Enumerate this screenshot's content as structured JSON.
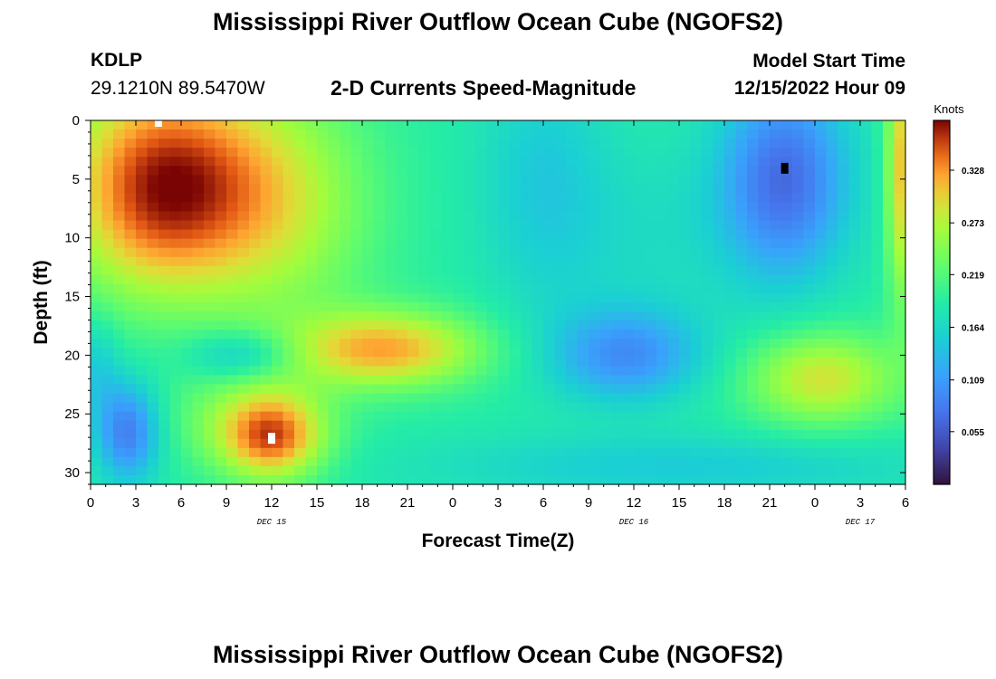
{
  "header": {
    "title": "Mississippi River Outflow Ocean Cube (NGOFS2)",
    "station_id": "KDLP",
    "station_coords": "29.1210N  89.5470W",
    "subtitle": "2-D Currents Speed-Magnitude",
    "model_start_label": "Model Start Time",
    "model_start_value": "12/15/2022 Hour 09"
  },
  "footer": {
    "title": "Mississippi River Outflow Ocean Cube (NGOFS2)"
  },
  "chart_data": {
    "type": "heatmap",
    "title": "2-D Currents Speed-Magnitude",
    "xlabel": "Forecast Time(Z)",
    "ylabel": "Depth (ft)",
    "x_tick_labels": [
      "0",
      "3",
      "6",
      "9",
      "12",
      "15",
      "18",
      "21",
      "0",
      "3",
      "6",
      "9",
      "12",
      "15",
      "18",
      "21",
      "0",
      "3",
      "6"
    ],
    "x_hours": [
      0,
      3,
      6,
      9,
      12,
      15,
      18,
      21,
      24,
      27,
      30,
      33,
      36,
      39,
      42,
      45,
      48,
      51,
      54
    ],
    "day_labels": [
      {
        "label": "DEC 15",
        "hour": 12
      },
      {
        "label": "DEC 16",
        "hour": 36
      },
      {
        "label": "DEC 17",
        "hour": 51
      }
    ],
    "y_ticks": [
      0,
      5,
      10,
      15,
      20,
      25,
      30
    ],
    "xlim_hours": [
      0,
      54
    ],
    "ylim_ft": [
      0,
      31
    ],
    "y_inverted": true,
    "colorbar": {
      "label": "Knots",
      "ticks": [
        0.055,
        0.109,
        0.164,
        0.219,
        0.273,
        0.328
      ],
      "range": [
        0.0,
        0.38
      ]
    },
    "blobs": [
      {
        "hour": 4.5,
        "depth": 4,
        "sx": 4.5,
        "sy": 6,
        "amp": 0.14
      },
      {
        "hour": 12,
        "depth": 7,
        "sx": 4.5,
        "sy": 7,
        "amp": 0.09
      },
      {
        "hour": 4,
        "depth": 10,
        "sx": 4,
        "sy": 5,
        "amp": 0.05
      },
      {
        "hour": 19.5,
        "depth": 19.5,
        "sx": 4.5,
        "sy": 2.3,
        "amp": 0.13
      },
      {
        "hour": 12,
        "depth": 27,
        "sx": 2.4,
        "sy": 2.6,
        "amp": 0.14
      },
      {
        "hour": 10,
        "depth": 25.5,
        "sx": 4,
        "sy": 3,
        "amp": 0.04
      },
      {
        "hour": 10,
        "depth": 20,
        "sx": 2.5,
        "sy": 1.5,
        "amp": -0.06
      },
      {
        "hour": 2.5,
        "depth": 26.5,
        "sx": 1.5,
        "sy": 3,
        "amp": -0.11
      },
      {
        "hour": 0.5,
        "depth": 21,
        "sx": 1,
        "sy": 3,
        "amp": -0.04
      },
      {
        "hour": 35.5,
        "depth": 20,
        "sx": 3.5,
        "sy": 2.8,
        "amp": -0.09
      },
      {
        "hour": 46,
        "depth": 5,
        "sx": 3,
        "sy": 6,
        "amp": -0.12
      },
      {
        "hour": 37,
        "depth": 10,
        "sx": 5,
        "sy": 6,
        "amp": -0.02
      },
      {
        "hour": 48.5,
        "depth": 22,
        "sx": 3.5,
        "sy": 2.8,
        "amp": 0.1
      },
      {
        "hour": 54,
        "depth": 4,
        "sx": 0.9,
        "sy": 8,
        "amp": 0.13
      },
      {
        "hour": 30,
        "depth": 5,
        "sx": 3,
        "sy": 8,
        "amp": -0.04
      },
      {
        "hour": 39,
        "depth": 29.5,
        "sx": 12,
        "sy": 2,
        "amp": -0.04
      }
    ],
    "base_value": 0.19,
    "markers": [
      {
        "hour": 4.5,
        "depth": 0.2,
        "color": "#ffffff"
      },
      {
        "hour": 12,
        "depth": 27,
        "color": "#ffffff"
      },
      {
        "hour": 46,
        "depth": 4,
        "color": "#000000"
      }
    ]
  }
}
